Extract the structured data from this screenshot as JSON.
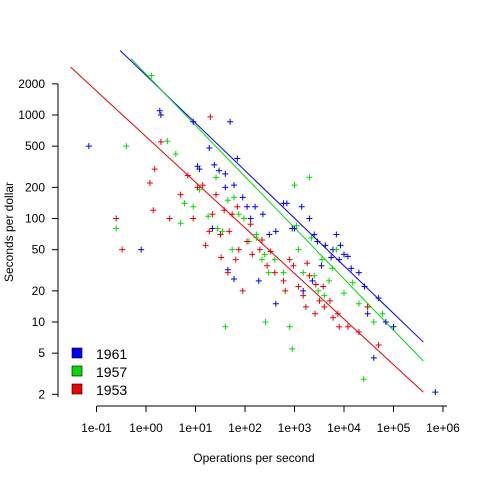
{
  "chart_data": {
    "type": "scatter",
    "title": "",
    "xlabel": "Operations per second",
    "ylabel": "Seconds per dollar",
    "xscale": "log",
    "yscale": "log",
    "xlim": [
      0.03,
      3000000
    ],
    "ylim": [
      1.85,
      4500
    ],
    "grid": false,
    "legend_position": "bottom-left",
    "x_ticks": [
      {
        "value": 0.1,
        "label": "1e-01"
      },
      {
        "value": 1,
        "label": "1e+00"
      },
      {
        "value": 10,
        "label": "1e+01"
      },
      {
        "value": 100,
        "label": "1e+02"
      },
      {
        "value": 1000,
        "label": "1e+03"
      },
      {
        "value": 10000,
        "label": "1e+04"
      },
      {
        "value": 100000,
        "label": "1e+05"
      },
      {
        "value": 1000000,
        "label": "1e+06"
      }
    ],
    "y_ticks": [
      {
        "value": 2,
        "label": "2"
      },
      {
        "value": 5,
        "label": "5"
      },
      {
        "value": 10,
        "label": "10"
      },
      {
        "value": 20,
        "label": "20"
      },
      {
        "value": 50,
        "label": "50"
      },
      {
        "value": 100,
        "label": "100"
      },
      {
        "value": 200,
        "label": "200"
      },
      {
        "value": 500,
        "label": "500"
      },
      {
        "value": 1000,
        "label": "1000"
      },
      {
        "value": 2000,
        "label": "2000"
      }
    ],
    "series": [
      {
        "name": "1961",
        "color": "#0000ff",
        "fit": {
          "x": [
            0.3,
            400000
          ],
          "y": [
            4200,
            6.4
          ]
        },
        "points": [
          [
            0.07,
            500
          ],
          [
            0.8,
            50
          ],
          [
            1.9,
            1100
          ],
          [
            2,
            1000
          ],
          [
            9,
            860
          ],
          [
            11,
            320
          ],
          [
            12,
            300
          ],
          [
            19,
            480
          ],
          [
            24,
            330
          ],
          [
            40,
            270
          ],
          [
            50,
            860
          ],
          [
            22,
            80
          ],
          [
            30,
            290
          ],
          [
            40,
            200
          ],
          [
            60,
            210
          ],
          [
            70,
            380
          ],
          [
            90,
            160
          ],
          [
            110,
            130
          ],
          [
            130,
            100
          ],
          [
            160,
            130
          ],
          [
            230,
            110
          ],
          [
            310,
            70
          ],
          [
            420,
            75
          ],
          [
            600,
            140
          ],
          [
            700,
            140
          ],
          [
            900,
            80
          ],
          [
            1000,
            80
          ],
          [
            1400,
            130
          ],
          [
            2000,
            100
          ],
          [
            2500,
            70
          ],
          [
            2900,
            60
          ],
          [
            3500,
            35
          ],
          [
            4200,
            55
          ],
          [
            6000,
            50
          ],
          [
            7000,
            70
          ],
          [
            8000,
            40
          ],
          [
            10000,
            45
          ],
          [
            14000,
            33
          ],
          [
            20000,
            30
          ],
          [
            26000,
            22
          ],
          [
            30000,
            12
          ],
          [
            40000,
            4.5
          ],
          [
            50000,
            17
          ],
          [
            70000,
            10
          ],
          [
            100000,
            9
          ],
          [
            700000,
            2.1
          ],
          [
            45,
            32
          ],
          [
            60,
            26
          ],
          [
            190,
            25
          ],
          [
            420,
            15
          ],
          [
            1500,
            20
          ],
          [
            2300,
            25
          ],
          [
            5500,
            42
          ],
          [
            8500,
            55
          ],
          [
            12000,
            43
          ]
        ]
      },
      {
        "name": "1957",
        "color": "#00dd00",
        "fit": {
          "x": [
            0.5,
            400000
          ],
          "y": [
            3500,
            4.2
          ]
        },
        "points": [
          [
            0.25,
            80
          ],
          [
            0.4,
            500
          ],
          [
            1.3,
            2400
          ],
          [
            2.7,
            560
          ],
          [
            4,
            420
          ],
          [
            5,
            90
          ],
          [
            6,
            140
          ],
          [
            9,
            130
          ],
          [
            12,
            190
          ],
          [
            18,
            105
          ],
          [
            26,
            250
          ],
          [
            40,
            9
          ],
          [
            60,
            160
          ],
          [
            75,
            110
          ],
          [
            95,
            100
          ],
          [
            120,
            60
          ],
          [
            170,
            70
          ],
          [
            220,
            40
          ],
          [
            260,
            10
          ],
          [
            300,
            30
          ],
          [
            400,
            40
          ],
          [
            600,
            30
          ],
          [
            800,
            9
          ],
          [
            900,
            5.5
          ],
          [
            1000,
            210
          ],
          [
            1200,
            50
          ],
          [
            1500,
            30
          ],
          [
            2000,
            250
          ],
          [
            2500,
            28
          ],
          [
            3000,
            20
          ],
          [
            4000,
            18
          ],
          [
            5000,
            25
          ],
          [
            7000,
            50
          ],
          [
            10000,
            19
          ],
          [
            15000,
            24
          ],
          [
            20000,
            15
          ],
          [
            25000,
            2.8
          ],
          [
            30000,
            14
          ],
          [
            40000,
            10
          ],
          [
            60000,
            12
          ],
          [
            28,
            80
          ],
          [
            35,
            75
          ],
          [
            45,
            150
          ],
          [
            55,
            50
          ],
          [
            170,
            65
          ],
          [
            250,
            45
          ],
          [
            1100,
            85
          ],
          [
            2200,
            65
          ],
          [
            3600,
            40
          ],
          [
            5800,
            33
          ]
        ]
      },
      {
        "name": "1953",
        "color": "#ee0000",
        "fit": {
          "x": [
            0.03,
            400000
          ],
          "y": [
            2900,
            2.1
          ]
        },
        "points": [
          [
            0.25,
            100
          ],
          [
            0.33,
            50
          ],
          [
            1.2,
            220
          ],
          [
            1.4,
            120
          ],
          [
            1.5,
            300
          ],
          [
            2,
            550
          ],
          [
            3,
            100
          ],
          [
            5,
            170
          ],
          [
            7,
            260
          ],
          [
            9,
            100
          ],
          [
            11,
            200
          ],
          [
            14,
            210
          ],
          [
            20,
            960
          ],
          [
            22,
            110
          ],
          [
            26,
            170
          ],
          [
            32,
            70
          ],
          [
            38,
            120
          ],
          [
            45,
            30
          ],
          [
            55,
            110
          ],
          [
            65,
            40
          ],
          [
            75,
            50
          ],
          [
            90,
            20
          ],
          [
            110,
            60
          ],
          [
            140,
            45
          ],
          [
            200,
            50
          ],
          [
            280,
            35
          ],
          [
            400,
            30
          ],
          [
            600,
            25
          ],
          [
            800,
            40
          ],
          [
            1200,
            22
          ],
          [
            1500,
            18
          ],
          [
            1700,
            14
          ],
          [
            2000,
            28
          ],
          [
            2700,
            23
          ],
          [
            3200,
            16
          ],
          [
            4000,
            14
          ],
          [
            6000,
            11
          ],
          [
            8000,
            9
          ],
          [
            12000,
            9
          ],
          [
            20000,
            8
          ],
          [
            30000,
            14
          ],
          [
            50000,
            6
          ],
          [
            16,
            55
          ],
          [
            19,
            75
          ],
          [
            33,
            42
          ],
          [
            48,
            75
          ],
          [
            70,
            130
          ],
          [
            130,
            88
          ],
          [
            220,
            62
          ],
          [
            330,
            48
          ],
          [
            650,
            20
          ],
          [
            950,
            35
          ],
          [
            1800,
            37
          ],
          [
            2600,
            12
          ],
          [
            3800,
            22
          ],
          [
            5200,
            16
          ],
          [
            7500,
            12
          ]
        ]
      }
    ]
  }
}
